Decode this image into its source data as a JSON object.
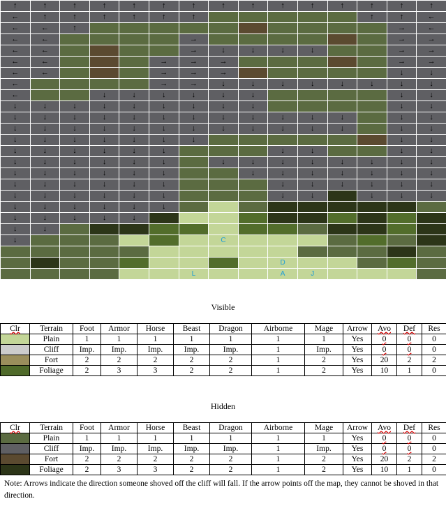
{
  "palette": {
    "g": "#5f5f63",
    "o": "#5b6b41",
    "f": "#5b4a30",
    "d": "#2c3518",
    "p": "#c3d698",
    "m": "#526d2b"
  },
  "map": {
    "rows": [
      [
        "g↑",
        "g↑",
        "g↑",
        "g↑",
        "g↑",
        "g↑",
        "g↑",
        "g↑",
        "g↑",
        "g↑",
        "g↑",
        "g↑",
        "g↑",
        "g↑",
        "g↑"
      ],
      [
        "g←",
        "g↑",
        "g↑",
        "g↑",
        "g↑",
        "g↑",
        "g↑",
        "o",
        "o",
        "o",
        "o",
        "o",
        "g↑",
        "g↑",
        "g←"
      ],
      [
        "g←",
        "g←",
        "g↑",
        "o",
        "o",
        "o",
        "o",
        "o",
        "f",
        "o",
        "o",
        "o",
        "o",
        "g→",
        "g←"
      ],
      [
        "g←",
        "g←",
        "o",
        "o",
        "o",
        "o",
        "g→",
        "o",
        "o",
        "o",
        "o",
        "f",
        "o",
        "g→",
        "g→"
      ],
      [
        "g←",
        "g←",
        "o",
        "f",
        "o",
        "o",
        "g→",
        "g↓",
        "g↓",
        "g↓",
        "g↓",
        "o",
        "o",
        "g→",
        "g→"
      ],
      [
        "g←",
        "g←",
        "o",
        "f",
        "o",
        "g→",
        "g→",
        "g→",
        "o",
        "o",
        "o",
        "f",
        "o",
        "g→",
        "g→"
      ],
      [
        "g←",
        "g←",
        "o",
        "f",
        "o",
        "g→",
        "g→",
        "g→",
        "f",
        "o",
        "o",
        "o",
        "o",
        "g↓",
        "g↓"
      ],
      [
        "g←",
        "o",
        "o",
        "o",
        "o",
        "g→",
        "g→",
        "g↓",
        "g↓",
        "g↓",
        "g↓",
        "g↓",
        "g↓",
        "g↓",
        "g↓"
      ],
      [
        "g←",
        "o",
        "o",
        "g↓",
        "g↓",
        "g↓",
        "g↓",
        "g↓",
        "g↓",
        "o",
        "o",
        "o",
        "o",
        "g↓",
        "g↓"
      ],
      [
        "g↓",
        "g↓",
        "g↓",
        "g↓",
        "g↓",
        "g↓",
        "g↓",
        "g↓",
        "g↓",
        "o",
        "o",
        "o",
        "o",
        "g↓",
        "g↓"
      ],
      [
        "g↓",
        "g↓",
        "g↓",
        "g↓",
        "g↓",
        "g↓",
        "g↓",
        "g↓",
        "g↓",
        "g↓",
        "g↓",
        "g↓",
        "o",
        "g↓",
        "g↓"
      ],
      [
        "g↓",
        "g↓",
        "g↓",
        "g↓",
        "g↓",
        "g↓",
        "g↓",
        "g↓",
        "g↓",
        "g↓",
        "g↓",
        "g↓",
        "o",
        "g↓",
        "g↓"
      ],
      [
        "g↓",
        "g↓",
        "g↓",
        "g↓",
        "g↓",
        "g↓",
        "g↓",
        "o",
        "o",
        "o",
        "o",
        "o",
        "f",
        "g↓",
        "g↓"
      ],
      [
        "g↓",
        "g↓",
        "g↓",
        "g↓",
        "g↓",
        "g↓",
        "o",
        "o",
        "o",
        "g↓",
        "g↓",
        "o",
        "o",
        "g↓",
        "g↓"
      ],
      [
        "g↓",
        "g↓",
        "g↓",
        "g↓",
        "g↓",
        "g↓",
        "o",
        "g↓",
        "g↓",
        "g↓",
        "g↓",
        "g↓",
        "g↓",
        "g↓",
        "g↓"
      ],
      [
        "g↓",
        "g↓",
        "g↓",
        "g↓",
        "g↓",
        "g↓",
        "o",
        "o",
        "g↓",
        "g↓",
        "g↓",
        "g↓",
        "g↓",
        "g↓",
        "g↓"
      ],
      [
        "g↓",
        "g↓",
        "g↓",
        "g↓",
        "g↓",
        "g↓",
        "o",
        "o",
        "o",
        "g↓",
        "g↓",
        "g↓",
        "g↓",
        "g↓",
        "g↓"
      ],
      [
        "g↓",
        "g↓",
        "g↓",
        "g↓",
        "g↓",
        "g↓",
        "o",
        "o",
        "o",
        "g↓",
        "g↓",
        "d",
        "g↓",
        "g↓",
        "g↓"
      ],
      [
        "g↓",
        "g↓",
        "g↓",
        "g↓",
        "g↓",
        "g↓",
        "o",
        "p",
        "o",
        "d",
        "d",
        "d",
        "d",
        "d",
        "o"
      ],
      [
        "g↓",
        "g↓",
        "g↓",
        "g↓",
        "g↓",
        "d",
        "p",
        "p",
        "m",
        "d",
        "d",
        "m",
        "d",
        "m",
        "d"
      ],
      [
        "g↓",
        "g↓",
        "o",
        "d",
        "d",
        "m",
        "m",
        "p",
        "m",
        "m",
        "o",
        "d",
        "d",
        "m",
        "d"
      ],
      [
        "g↓",
        "o",
        "o",
        "o",
        "p",
        "m",
        "p",
        "p:C",
        "p",
        "p",
        "p",
        "o",
        "m",
        "o",
        "d"
      ],
      [
        "o",
        "o",
        "o",
        "o",
        "o",
        "p",
        "p",
        "p",
        "p",
        "p",
        "o",
        "o",
        "o",
        "d",
        "o"
      ],
      [
        "o",
        "d",
        "o",
        "o",
        "m",
        "p",
        "p",
        "m",
        "p",
        "p:D",
        "p",
        "p",
        "o",
        "m",
        "o"
      ],
      [
        "o",
        "o",
        "o",
        "o",
        "p",
        "p",
        "p:L",
        "p",
        "p",
        "p:A",
        "p:J",
        "p",
        "p",
        "p",
        "o"
      ]
    ]
  },
  "visible": {
    "caption": "Visible",
    "headers": [
      "Clr",
      "Terrain",
      "Foot",
      "Armor",
      "Horse",
      "Beast",
      "Dragon",
      "Airborne",
      "Mage",
      "Arrow",
      "Avo",
      "Def",
      "Res"
    ],
    "rows": [
      {
        "color": "#c3d698",
        "cells": [
          "Plain",
          "1",
          "1",
          "1",
          "1",
          "1",
          "1",
          "1",
          "Yes",
          "0",
          "0",
          "0"
        ]
      },
      {
        "color": "#cccccc",
        "cells": [
          "Cliff",
          "Imp.",
          "Imp.",
          "Imp.",
          "Imp.",
          "Imp.",
          "1",
          "Imp.",
          "Yes",
          "0",
          "0",
          "0"
        ]
      },
      {
        "color": "#9a8e5c",
        "cells": [
          "Fort",
          "2",
          "2",
          "2",
          "2",
          "2",
          "1",
          "2",
          "Yes",
          "20",
          "2",
          "2"
        ]
      },
      {
        "color": "#4f6a2a",
        "cells": [
          "Foliage",
          "2",
          "3",
          "3",
          "2",
          "2",
          "1",
          "2",
          "Yes",
          "10",
          "1",
          "0"
        ]
      }
    ]
  },
  "hidden": {
    "caption": "Hidden",
    "headers": [
      "Clr",
      "Terrain",
      "Foot",
      "Armor",
      "Horse",
      "Beast",
      "Dragon",
      "Airborne",
      "Mage",
      "Arrow",
      "Avo",
      "Def",
      "Res"
    ],
    "rows": [
      {
        "color": "#5b6b41",
        "cells": [
          "Plain",
          "1",
          "1",
          "1",
          "1",
          "1",
          "1",
          "1",
          "Yes",
          "0",
          "0",
          "0"
        ]
      },
      {
        "color": "#5f5f63",
        "cells": [
          "Cliff",
          "Imp.",
          "Imp.",
          "Imp.",
          "Imp.",
          "Imp.",
          "1",
          "Imp.",
          "Yes",
          "0",
          "0",
          "0"
        ]
      },
      {
        "color": "#5b4a30",
        "cells": [
          "Fort",
          "2",
          "2",
          "2",
          "2",
          "2",
          "1",
          "2",
          "Yes",
          "20",
          "2",
          "2"
        ]
      },
      {
        "color": "#2c3518",
        "cells": [
          "Foliage",
          "2",
          "3",
          "3",
          "2",
          "2",
          "1",
          "2",
          "Yes",
          "10",
          "1",
          "0"
        ]
      }
    ]
  },
  "note": "Note: Arrows indicate the direction someone shoved off the cliff will fall. If the arrow points off the map, they cannot be shoved in that direction."
}
